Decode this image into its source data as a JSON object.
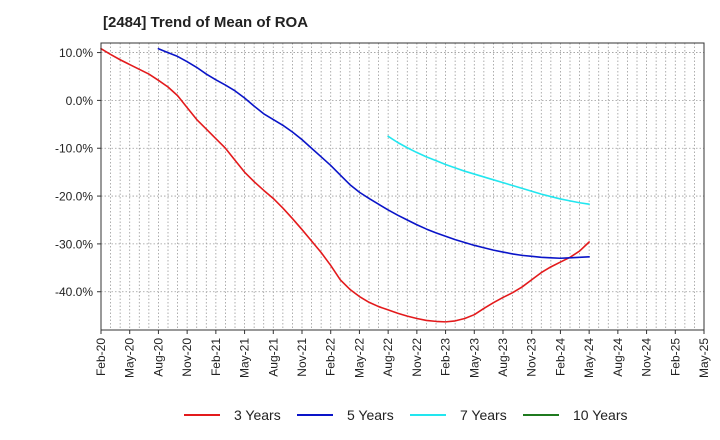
{
  "chart_data": {
    "type": "line",
    "title": "[2484]  Trend of Mean of ROA",
    "xlabel": "",
    "ylabel": "",
    "ylim": [
      -48,
      12
    ],
    "yticks": [
      10,
      0,
      -10,
      -20,
      -30,
      -40
    ],
    "ytick_labels": [
      "10.0%",
      "0.0%",
      "-10.0%",
      "-20.0%",
      "-30.0%",
      "-40.0%"
    ],
    "xticks": [
      "Feb-20",
      "May-20",
      "Aug-20",
      "Nov-20",
      "Feb-21",
      "May-21",
      "Aug-21",
      "Nov-21",
      "Feb-22",
      "May-22",
      "Aug-22",
      "Nov-22",
      "Feb-23",
      "May-23",
      "Aug-23",
      "Nov-23",
      "Feb-24",
      "May-24",
      "Aug-24",
      "Nov-24",
      "Feb-25",
      "May-25"
    ],
    "grid": true,
    "legend_position": "bottom",
    "series": [
      {
        "name": "3 Years",
        "color": "#e31a1c",
        "start_month": 0,
        "values": [
          10.8,
          9.6,
          8.5,
          7.5,
          6.5,
          5.5,
          4.2,
          2.8,
          1.0,
          -1.5,
          -4.0,
          -6.0,
          -8.0,
          -10.0,
          -12.5,
          -15.0,
          -17.0,
          -18.8,
          -20.5,
          -22.5,
          -24.7,
          -27.0,
          -29.4,
          -31.8,
          -34.5,
          -37.5,
          -39.5,
          -41.0,
          -42.2,
          -43.1,
          -43.8,
          -44.5,
          -45.1,
          -45.6,
          -46.0,
          -46.2,
          -46.3,
          -46.1,
          -45.6,
          -44.8,
          -43.5,
          -42.3,
          -41.2,
          -40.2,
          -39.0,
          -37.5,
          -36.0,
          -34.8,
          -33.8,
          -32.8,
          -31.5,
          -29.6
        ]
      },
      {
        "name": "5 Years",
        "color": "#0a14c8",
        "start_month": 6,
        "values": [
          10.8,
          10.0,
          9.2,
          8.1,
          6.9,
          5.5,
          4.3,
          3.2,
          2.0,
          0.5,
          -1.2,
          -2.8,
          -4.0,
          -5.2,
          -6.6,
          -8.2,
          -10.0,
          -11.8,
          -13.6,
          -15.6,
          -17.6,
          -19.2,
          -20.5,
          -21.7,
          -22.9,
          -24.0,
          -25.0,
          -26.0,
          -26.9,
          -27.7,
          -28.4,
          -29.1,
          -29.7,
          -30.3,
          -30.8,
          -31.3,
          -31.7,
          -32.1,
          -32.4,
          -32.6,
          -32.8,
          -32.9,
          -33.0,
          -32.9,
          -32.8,
          -32.7
        ]
      },
      {
        "name": "7 Years",
        "color": "#22e6ef",
        "start_month": 30,
        "values": [
          -7.5,
          -8.8,
          -9.9,
          -10.9,
          -11.8,
          -12.6,
          -13.4,
          -14.1,
          -14.8,
          -15.4,
          -16.0,
          -16.6,
          -17.2,
          -17.8,
          -18.4,
          -19.0,
          -19.6,
          -20.1,
          -20.6,
          -21.0,
          -21.4,
          -21.7
        ]
      },
      {
        "name": "10 Years",
        "color": "#1f7a1f",
        "start_month": 0,
        "values": []
      }
    ]
  }
}
